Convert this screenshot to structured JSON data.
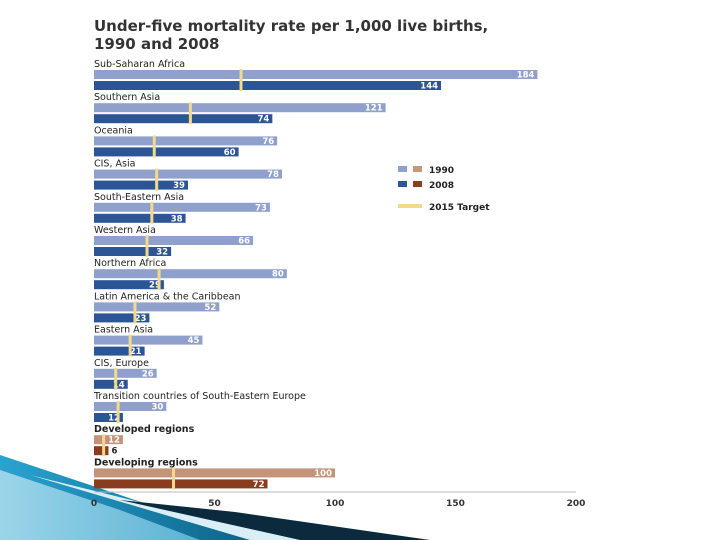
{
  "chart_data": {
    "type": "bar",
    "title_lines": [
      "Under-five mortality rate per 1,000 live births,",
      "1990 and 2008"
    ],
    "categories": [
      "Sub-Saharan Africa",
      "Southern Asia",
      "Oceania",
      "CIS, Asia",
      "South-Eastern Asia",
      "Western Asia",
      "Northern Africa",
      "Latin America & the Caribbean",
      "Eastern Asia",
      "CIS, Europe",
      "Transition countries of South-Eastern Europe",
      "Developed regions",
      "Developing regions"
    ],
    "bold_categories": [
      "Developed regions",
      "Developing regions"
    ],
    "series": [
      {
        "name": "1990",
        "values": [
          184,
          121,
          76,
          78,
          73,
          66,
          80,
          52,
          45,
          26,
          30,
          12,
          100
        ]
      },
      {
        "name": "2008",
        "values": [
          144,
          74,
          60,
          39,
          38,
          32,
          29,
          23,
          21,
          14,
          12,
          6,
          72
        ]
      }
    ],
    "target_name": "2015 Target",
    "targets": [
      61,
      40,
      25,
      26,
      24,
      22,
      27,
      17,
      15,
      9,
      10,
      4,
      33
    ],
    "xticks": [
      0,
      50,
      100,
      150,
      200
    ],
    "xlim": [
      0,
      200
    ],
    "colors": {
      "bar_1990_region": "#8fa0cc",
      "bar_2008_region": "#2c5596",
      "bar_1990_aggregate": "#c49379",
      "bar_2008_aggregate": "#8a3c1f",
      "target": "#f3d98c",
      "legend_1990_region": "#8fa0cc",
      "legend_1990_aggregate": "#c9977b",
      "legend_2008_region": "#2c5596",
      "legend_2008_aggregate": "#8a3c1f"
    },
    "legend": [
      "1990",
      "2008",
      "2015 Target"
    ],
    "legend_position": "right"
  }
}
